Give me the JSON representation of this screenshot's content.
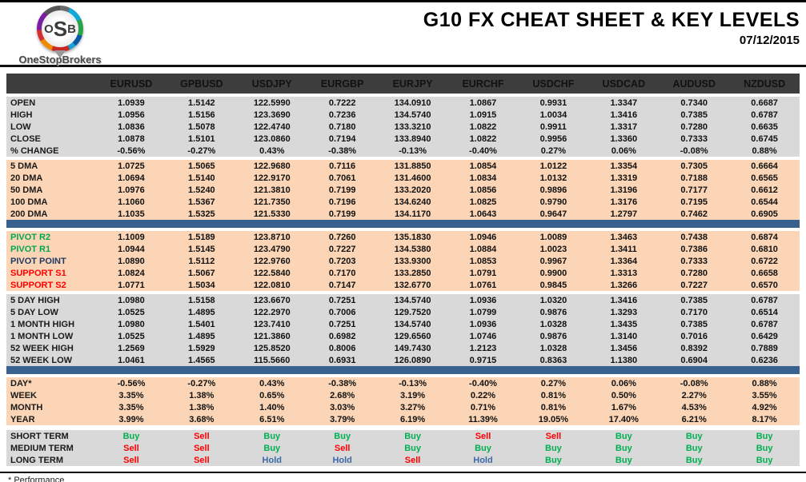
{
  "header": {
    "logo": {
      "text": "OSB",
      "subtext": "OneStopBrokers"
    },
    "title": "G10 FX CHEAT SHEET & KEY LEVELS",
    "date": "07/12/2015"
  },
  "colors": {
    "header_bg": "#3d3d3d",
    "gray": "#d9d9d9",
    "peach": "#fbd5b5",
    "bar_blue": "#38618f",
    "buy_green": "#00b050",
    "sell_red": "#ff0000",
    "hold_blue": "#3c69a8",
    "label_green": "#00a651",
    "label_navy": "#1f3864",
    "label_red": "#ff0000"
  },
  "table": {
    "columns": [
      "EURUSD",
      "GPBUSD",
      "USDJPY",
      "EURGBP",
      "EURJPY",
      "EURCHF",
      "USDCHF",
      "USDCAD",
      "AUDUSD",
      "NZDUSD"
    ],
    "sections": [
      {
        "name": "ohlc",
        "bg": "gray",
        "bar_after": false,
        "rows": [
          {
            "label": "OPEN",
            "values": [
              "1.0939",
              "1.5142",
              "122.5990",
              "0.7222",
              "134.0910",
              "1.0867",
              "0.9931",
              "1.3347",
              "0.7340",
              "0.6687"
            ]
          },
          {
            "label": "HIGH",
            "values": [
              "1.0956",
              "1.5156",
              "123.3690",
              "0.7236",
              "134.5740",
              "1.0915",
              "1.0034",
              "1.3416",
              "0.7385",
              "0.6787"
            ]
          },
          {
            "label": "LOW",
            "values": [
              "1.0836",
              "1.5078",
              "122.4740",
              "0.7180",
              "133.3210",
              "1.0822",
              "0.9911",
              "1.3317",
              "0.7280",
              "0.6635"
            ]
          },
          {
            "label": "CLOSE",
            "values": [
              "1.0878",
              "1.5101",
              "123.0860",
              "0.7194",
              "133.8940",
              "1.0822",
              "0.9956",
              "1.3360",
              "0.7333",
              "0.6745"
            ]
          },
          {
            "label": "% CHANGE",
            "values": [
              "-0.56%",
              "-0.27%",
              "0.43%",
              "-0.38%",
              "-0.13%",
              "-0.40%",
              "0.27%",
              "0.06%",
              "-0.08%",
              "0.88%"
            ]
          }
        ]
      },
      {
        "name": "moving-averages",
        "bg": "peach",
        "bar_after": true,
        "rows": [
          {
            "label": "5 DMA",
            "values": [
              "1.0725",
              "1.5065",
              "122.9680",
              "0.7116",
              "131.8850",
              "1.0854",
              "1.0122",
              "1.3354",
              "0.7305",
              "0.6664"
            ]
          },
          {
            "label": "20 DMA",
            "values": [
              "1.0694",
              "1.5140",
              "122.9170",
              "0.7061",
              "131.4600",
              "1.0834",
              "1.0132",
              "1.3319",
              "0.7188",
              "0.6565"
            ]
          },
          {
            "label": "50 DMA",
            "values": [
              "1.0976",
              "1.5240",
              "121.3810",
              "0.7199",
              "133.2020",
              "1.0856",
              "0.9896",
              "1.3196",
              "0.7177",
              "0.6612"
            ]
          },
          {
            "label": "100 DMA",
            "values": [
              "1.1060",
              "1.5367",
              "121.7350",
              "0.7196",
              "134.6240",
              "1.0825",
              "0.9790",
              "1.3176",
              "0.7195",
              "0.6544"
            ]
          },
          {
            "label": "200 DMA",
            "values": [
              "1.1035",
              "1.5325",
              "121.5330",
              "0.7199",
              "134.1170",
              "1.0643",
              "0.9647",
              "1.2797",
              "0.7462",
              "0.6905"
            ]
          }
        ]
      },
      {
        "name": "pivots",
        "bg": "peach",
        "bar_after": false,
        "rows": [
          {
            "label": "PIVOT R2",
            "label_style": "green",
            "values": [
              "1.1009",
              "1.5189",
              "123.8710",
              "0.7260",
              "135.1830",
              "1.0946",
              "1.0089",
              "1.3463",
              "0.7438",
              "0.6874"
            ]
          },
          {
            "label": "PIVOT R1",
            "label_style": "green",
            "values": [
              "1.0944",
              "1.5145",
              "123.4790",
              "0.7227",
              "134.5380",
              "1.0884",
              "1.0023",
              "1.3411",
              "0.7386",
              "0.6810"
            ]
          },
          {
            "label": "PIVOT POINT",
            "label_style": "navy",
            "values": [
              "1.0890",
              "1.5112",
              "122.9760",
              "0.7203",
              "133.9300",
              "1.0853",
              "0.9967",
              "1.3364",
              "0.7333",
              "0.6722"
            ]
          },
          {
            "label": "SUPPORT S1",
            "label_style": "red",
            "values": [
              "1.0824",
              "1.5067",
              "122.5840",
              "0.7170",
              "133.2850",
              "1.0791",
              "0.9900",
              "1.3313",
              "0.7280",
              "0.6658"
            ]
          },
          {
            "label": "SUPPORT S2",
            "label_style": "red",
            "values": [
              "1.0771",
              "1.5034",
              "122.0810",
              "0.7147",
              "132.6770",
              "1.0761",
              "0.9845",
              "1.3266",
              "0.7227",
              "0.6570"
            ]
          }
        ]
      },
      {
        "name": "ranges",
        "bg": "gray",
        "bar_after": true,
        "rows": [
          {
            "label": "5 DAY HIGH",
            "values": [
              "1.0980",
              "1.5158",
              "123.6670",
              "0.7251",
              "134.5740",
              "1.0936",
              "1.0320",
              "1.3416",
              "0.7385",
              "0.6787"
            ]
          },
          {
            "label": "5 DAY LOW",
            "values": [
              "1.0525",
              "1.4895",
              "122.2970",
              "0.7006",
              "129.7520",
              "1.0799",
              "0.9876",
              "1.3293",
              "0.7170",
              "0.6514"
            ]
          },
          {
            "label": "1 MONTH HIGH",
            "values": [
              "1.0980",
              "1.5401",
              "123.7410",
              "0.7251",
              "134.5740",
              "1.0936",
              "1.0328",
              "1.3435",
              "0.7385",
              "0.6787"
            ]
          },
          {
            "label": "1 MONTH LOW",
            "values": [
              "1.0525",
              "1.4895",
              "121.3860",
              "0.6982",
              "129.6560",
              "1.0746",
              "0.9876",
              "1.3140",
              "0.7016",
              "0.6429"
            ]
          },
          {
            "label": "52 WEEK HIGH",
            "values": [
              "1.2569",
              "1.5929",
              "125.8520",
              "0.8006",
              "149.7430",
              "1.2123",
              "1.0328",
              "1.3456",
              "0.8392",
              "0.7889"
            ]
          },
          {
            "label": "52 WEEK LOW",
            "values": [
              "1.0461",
              "1.4565",
              "115.5660",
              "0.6931",
              "126.0890",
              "0.9715",
              "0.8363",
              "1.1380",
              "0.6904",
              "0.6236"
            ]
          }
        ]
      },
      {
        "name": "performance",
        "bg": "peach",
        "bar_after": false,
        "rows": [
          {
            "label": "DAY*",
            "values": [
              "-0.56%",
              "-0.27%",
              "0.43%",
              "-0.38%",
              "-0.13%",
              "-0.40%",
              "0.27%",
              "0.06%",
              "-0.08%",
              "0.88%"
            ]
          },
          {
            "label": "WEEK",
            "values": [
              "3.35%",
              "1.38%",
              "0.65%",
              "2.68%",
              "3.19%",
              "0.22%",
              "0.81%",
              "0.50%",
              "2.27%",
              "3.55%"
            ]
          },
          {
            "label": "MONTH",
            "values": [
              "3.35%",
              "1.38%",
              "1.40%",
              "3.03%",
              "3.27%",
              "0.71%",
              "0.81%",
              "1.67%",
              "4.53%",
              "4.92%"
            ]
          },
          {
            "label": "YEAR",
            "values": [
              "3.99%",
              "3.68%",
              "6.51%",
              "3.79%",
              "6.19%",
              "11.39%",
              "19.05%",
              "17.40%",
              "6.21%",
              "8.17%"
            ]
          }
        ]
      },
      {
        "name": "signals",
        "bg": "gray",
        "bar_after": false,
        "signal": true,
        "margin_top": 6,
        "rows": [
          {
            "label": "SHORT TERM",
            "values": [
              "Buy",
              "Sell",
              "Buy",
              "Buy",
              "Buy",
              "Sell",
              "Sell",
              "Buy",
              "Buy",
              "Buy"
            ]
          },
          {
            "label": "MEDIUM TERM",
            "values": [
              "Sell",
              "Sell",
              "Buy",
              "Sell",
              "Buy",
              "Buy",
              "Buy",
              "Buy",
              "Buy",
              "Buy"
            ]
          },
          {
            "label": "LONG TERM",
            "values": [
              "Sell",
              "Sell",
              "Hold",
              "Hold",
              "Sell",
              "Hold",
              "Buy",
              "Buy",
              "Buy",
              "Buy"
            ]
          }
        ]
      }
    ]
  },
  "footnote": "* Performance"
}
